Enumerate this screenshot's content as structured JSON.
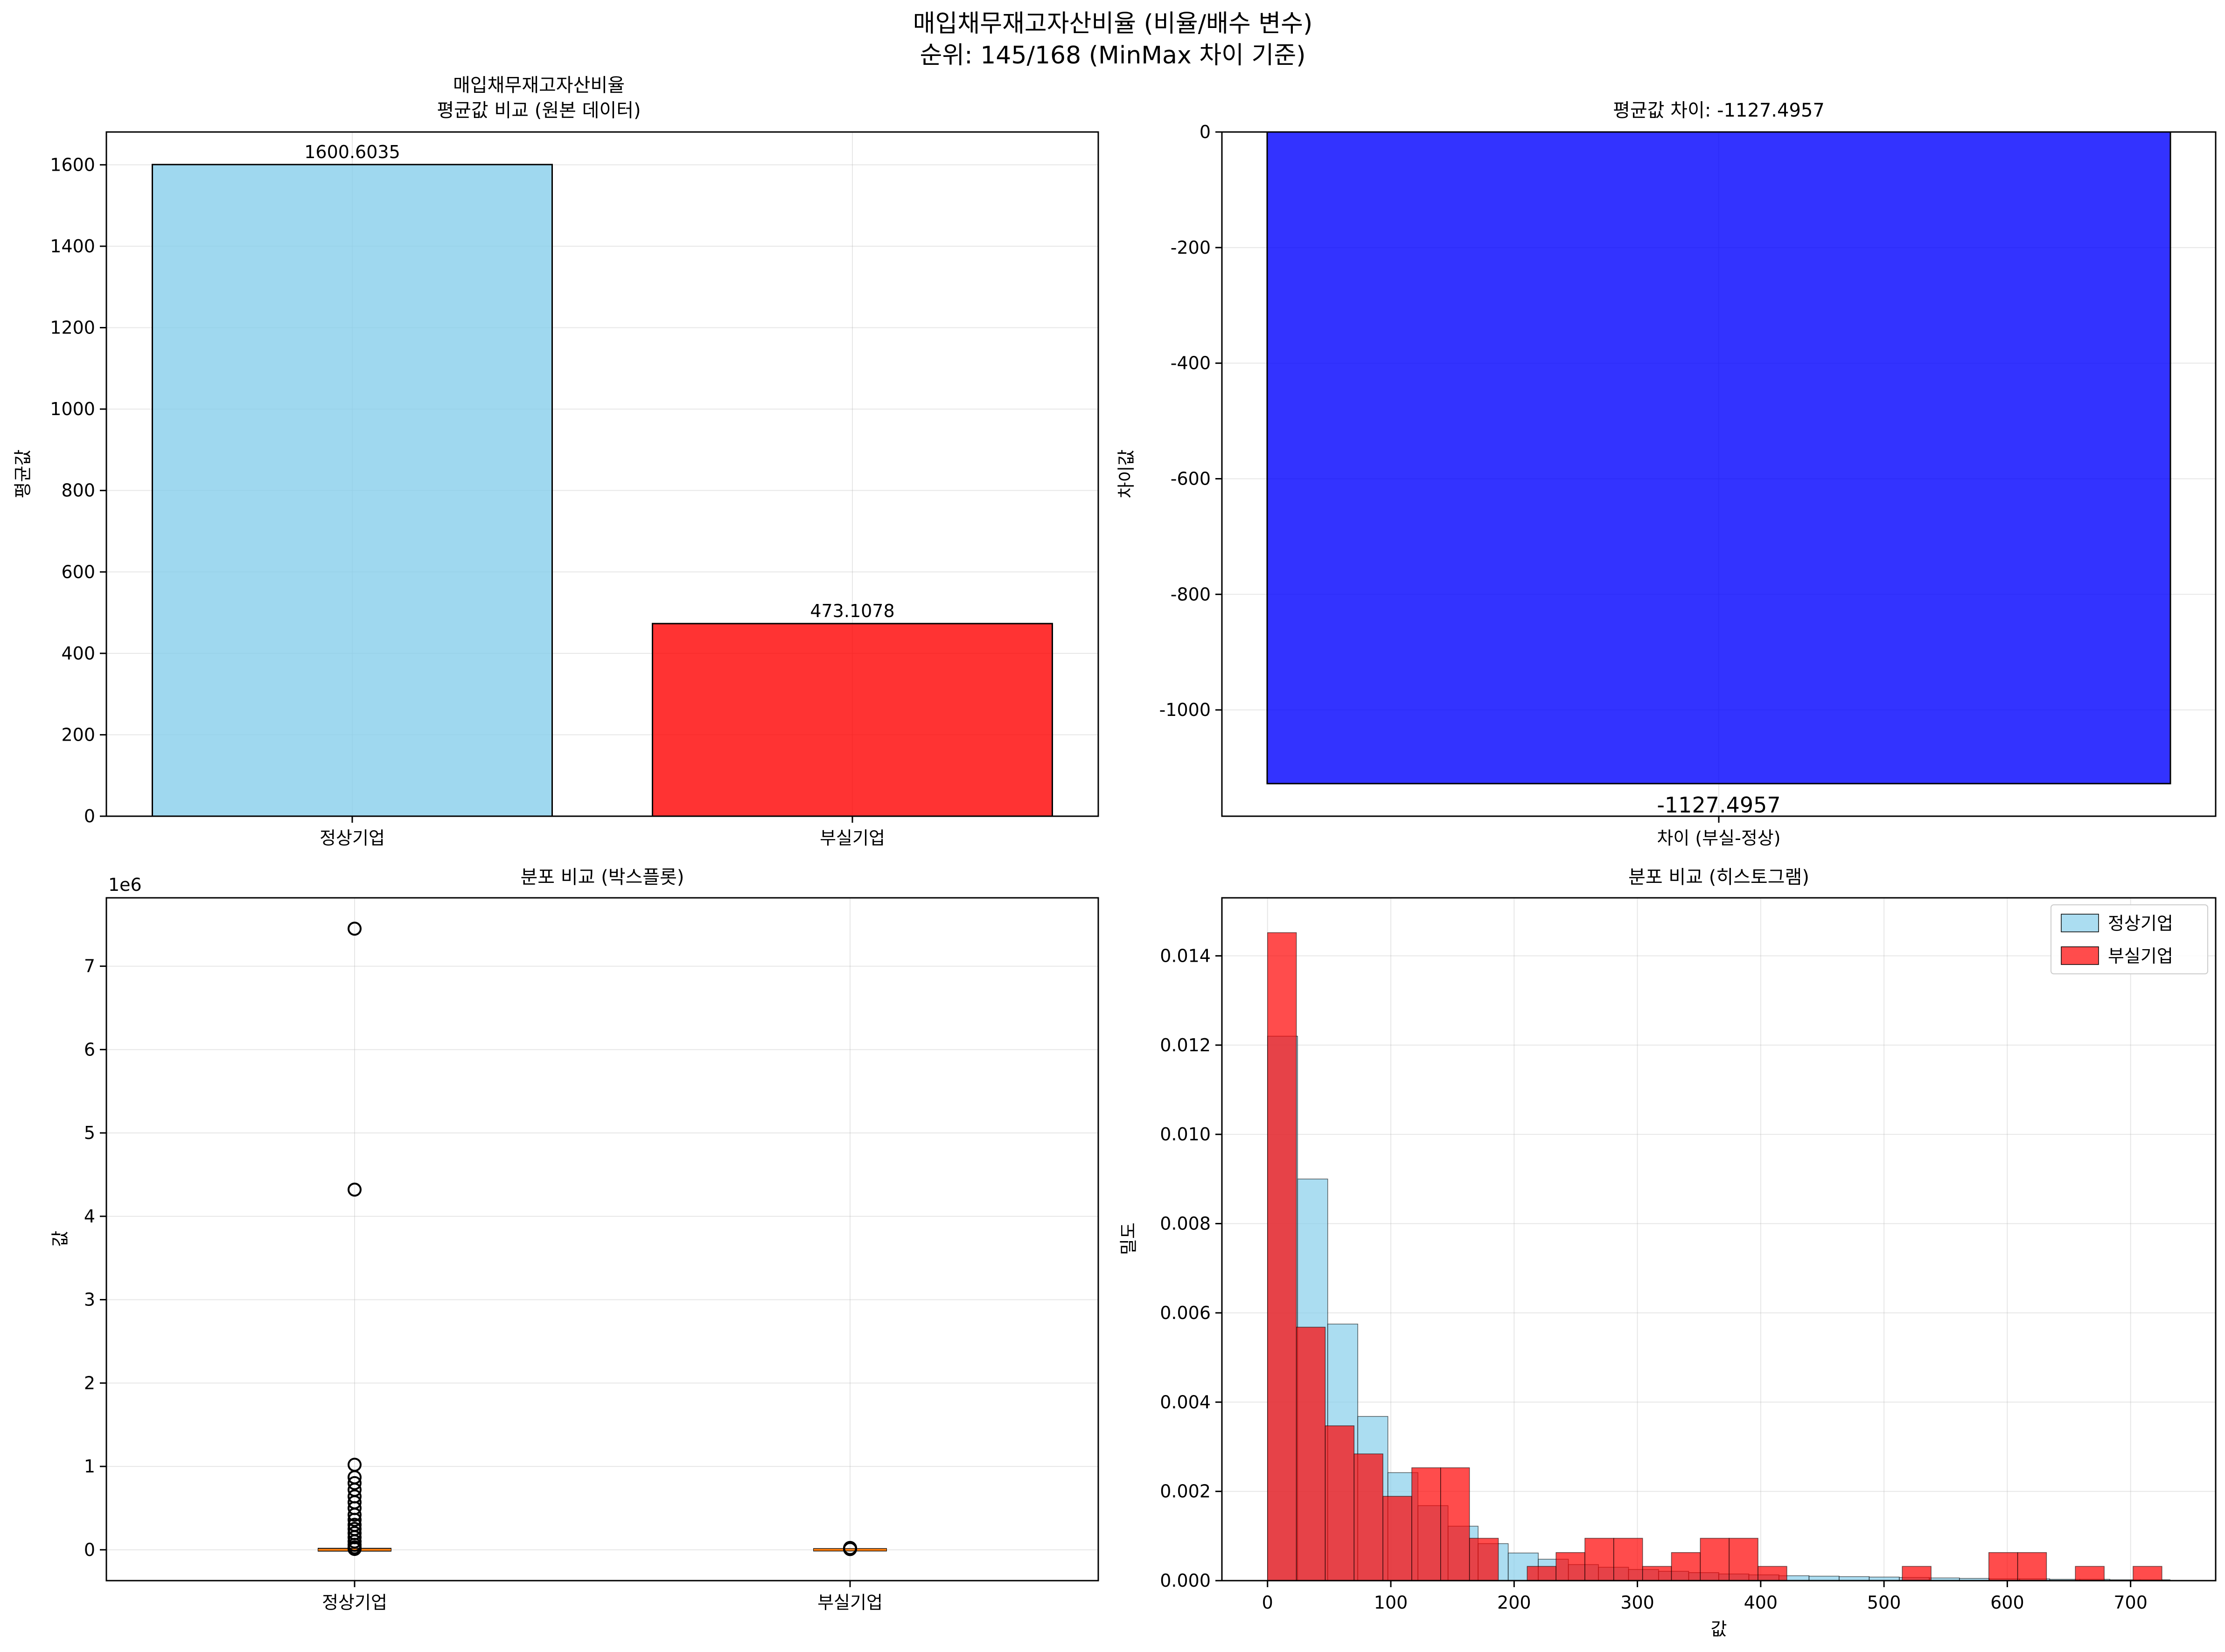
{
  "figure": {
    "title_line1": "매입채무재고자산비율 (비율/배수 변수)",
    "title_line2": "순위: 145/168 (MinMax 차이 기준)"
  },
  "chart_data": [
    {
      "id": "mean-bar",
      "type": "bar",
      "title_line1": "매입채무재고자산비율",
      "title_line2": "평균값 비교 (원본 데이터)",
      "categories": [
        "정상기업",
        "부실기업"
      ],
      "values": [
        1600.6035,
        473.1078
      ],
      "value_labels": [
        "1600.6035",
        "473.1078"
      ],
      "colors": [
        "#87ceeb",
        "#ff0000"
      ],
      "ylabel": "평균값",
      "ylim": [
        0,
        1680.6
      ],
      "yticks": [
        0,
        200,
        400,
        600,
        800,
        1000,
        1200,
        1400,
        1600
      ],
      "grid": true
    },
    {
      "id": "diff-bar",
      "type": "bar",
      "title": "평균값 차이: -1127.4957",
      "categories": [
        "차이 (부실-정상)"
      ],
      "values": [
        -1127.4957
      ],
      "value_labels": [
        "-1127.4957"
      ],
      "colors": [
        "#0000ff"
      ],
      "ylabel": "차이값",
      "ylim": [
        -1183.9,
        0
      ],
      "yticks": [
        0,
        -200,
        -400,
        -600,
        -800,
        -1000
      ],
      "grid": true
    },
    {
      "id": "boxplot",
      "type": "box",
      "title": "분포 비교 (박스플롯)",
      "categories": [
        "정상기업",
        "부실기업"
      ],
      "ylabel": "값",
      "offset_label": "1e6",
      "ylim": [
        -0.37,
        7.82
      ],
      "yticks": [
        0,
        1,
        2,
        3,
        4,
        5,
        6,
        7
      ],
      "median_color": "#ff7f0e",
      "boxes": [
        {
          "q1": -0.004,
          "median": 0.0,
          "q3": 0.006,
          "whisker_low": -0.01,
          "whisker_high": 0.02,
          "outliers": [
            7.45,
            4.32,
            1.02,
            0.87,
            0.8,
            0.72,
            0.64,
            0.57,
            0.5,
            0.42,
            0.36,
            0.3,
            0.25,
            0.2,
            0.15,
            0.1,
            0.06,
            0.03,
            0.01
          ]
        },
        {
          "q1": -0.002,
          "median": 0.0,
          "q3": 0.002,
          "whisker_low": -0.005,
          "whisker_high": 0.008,
          "outliers": [
            0.022,
            0.015,
            0.008
          ]
        }
      ],
      "grid": true
    },
    {
      "id": "histogram",
      "type": "histogram",
      "title": "분포 비교 (히스토그램)",
      "xlabel": "값",
      "ylabel": "밀도",
      "xlim": [
        -37,
        769
      ],
      "ylim": [
        0,
        0.0153
      ],
      "xticks": [
        0,
        100,
        200,
        300,
        400,
        500,
        600,
        700
      ],
      "yticks": [
        0.0,
        0.002,
        0.004,
        0.006,
        0.008,
        0.01,
        0.012,
        0.014
      ],
      "ytick_labels": [
        "0.000",
        "0.002",
        "0.004",
        "0.006",
        "0.008",
        "0.010",
        "0.012",
        "0.014"
      ],
      "legend_position": "upper-right",
      "grid": true,
      "series": [
        {
          "name": "정상기업",
          "color": "#87ceeb",
          "bin_start": 0,
          "bin_width": 24.4,
          "density": [
            0.0122,
            0.009,
            0.00575,
            0.00368,
            0.00242,
            0.00168,
            0.00122,
            0.00083,
            0.00062,
            0.00048,
            0.00036,
            0.0003,
            0.00025,
            0.00021,
            0.00018,
            0.00015,
            0.00013,
            0.00011,
            0.0001,
            9e-05,
            8e-05,
            7e-05,
            6e-05,
            5e-05,
            4e-05,
            4e-05,
            3e-05,
            3e-05,
            2e-05,
            2e-05
          ]
        },
        {
          "name": "부실기업",
          "color": "#ff0000",
          "bin_start": 0,
          "bin_width": 23.4,
          "density": [
            0.01452,
            0.00568,
            0.00347,
            0.00284,
            0.00189,
            0.00253,
            0.00253,
            0.00095,
            0.0,
            0.00032,
            0.00063,
            0.00095,
            0.00095,
            0.00032,
            0.00063,
            0.00095,
            0.00095,
            0.00032,
            0.0,
            0.0,
            0.0,
            0.0,
            0.00032,
            0.0,
            0.0,
            0.00063,
            0.00063,
            0.0,
            0.00032,
            0.0,
            0.00032
          ]
        }
      ]
    }
  ]
}
